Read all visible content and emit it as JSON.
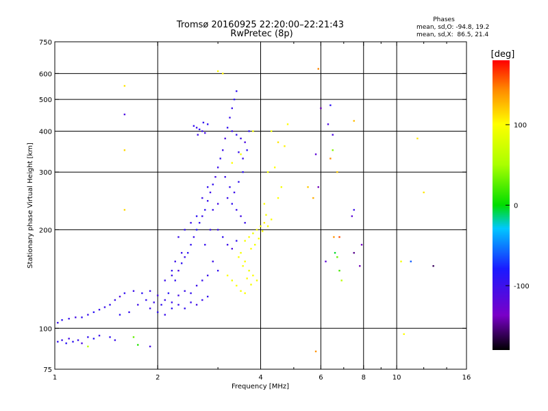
{
  "chart_data": {
    "type": "scatter",
    "title": "Tromsø 20160925 22:20:00–22:21:43",
    "subtitle": "RwPretec (8p)",
    "phases_box": {
      "header": "Phases",
      "line1": "mean, sd,O: -94.8, 19.2",
      "line2": "mean, sd,X:  86.5, 21.4"
    },
    "xlabel": "Frequency [MHz]",
    "ylabel": "Stationary phase Virtual Height [km]",
    "x_scale": "log",
    "y_scale": "log",
    "xlim": [
      1,
      16
    ],
    "ylim": [
      75,
      750
    ],
    "x_ticks": [
      1,
      2,
      4,
      6,
      8,
      10,
      16
    ],
    "x_tick_labels": [
      "1",
      "2",
      "4",
      "6",
      "8",
      "10",
      "16"
    ],
    "y_ticks": [
      75,
      100,
      200,
      300,
      400,
      500,
      600,
      750
    ],
    "y_tick_labels": [
      "75",
      "100",
      "200",
      "300",
      "400",
      "500",
      "600",
      "750"
    ],
    "x_gridlines": [
      2,
      4,
      6,
      8,
      10
    ],
    "y_gridlines": [
      100,
      200,
      300,
      400,
      500,
      600
    ],
    "grid": true,
    "colorbar": {
      "label": "[deg]",
      "range": [
        -180,
        180
      ],
      "ticks": [
        100,
        0,
        -100
      ],
      "tick_labels": [
        "100",
        "0",
        "-100"
      ]
    },
    "series": [
      {
        "mode": "O",
        "points": [
          [
            1.02,
            91,
            -95
          ],
          [
            1.05,
            92,
            -100
          ],
          [
            1.08,
            90,
            -90
          ],
          [
            1.1,
            93,
            -105
          ],
          [
            1.13,
            91,
            -92
          ],
          [
            1.17,
            92,
            -98
          ],
          [
            1.2,
            90,
            -110
          ],
          [
            1.25,
            94,
            -95
          ],
          [
            1.3,
            93,
            -88
          ],
          [
            1.35,
            95,
            -100
          ],
          [
            1.45,
            94,
            -95
          ],
          [
            1.5,
            92,
            -100
          ],
          [
            1.02,
            104,
            -100
          ],
          [
            1.05,
            106,
            -92
          ],
          [
            1.1,
            107,
            -98
          ],
          [
            1.15,
            108,
            -105
          ],
          [
            1.2,
            108,
            -95
          ],
          [
            1.25,
            110,
            -100
          ],
          [
            1.3,
            112,
            -90
          ],
          [
            1.35,
            114,
            -97
          ],
          [
            1.4,
            116,
            -100
          ],
          [
            1.45,
            118,
            -95
          ],
          [
            1.5,
            122,
            -100
          ],
          [
            1.55,
            125,
            -110
          ],
          [
            1.6,
            128,
            -95
          ],
          [
            1.7,
            130,
            -100
          ],
          [
            1.8,
            128,
            -90
          ],
          [
            1.9,
            130,
            -100
          ],
          [
            2.0,
            126,
            -105
          ],
          [
            2.05,
            118,
            -95
          ],
          [
            2.1,
            122,
            -100
          ],
          [
            2.15,
            128,
            -88
          ],
          [
            1.55,
            110,
            -92
          ],
          [
            1.65,
            112,
            -98
          ],
          [
            1.75,
            118,
            -102
          ],
          [
            1.85,
            122,
            -96
          ],
          [
            1.95,
            120,
            -100
          ],
          [
            2.2,
            145,
            -100
          ],
          [
            2.25,
            140,
            -95
          ],
          [
            2.3,
            150,
            -110
          ],
          [
            2.35,
            158,
            -92
          ],
          [
            2.4,
            165,
            -100
          ],
          [
            2.45,
            170,
            -90
          ],
          [
            2.5,
            180,
            -95
          ],
          [
            2.55,
            190,
            -100
          ],
          [
            2.6,
            200,
            -85
          ],
          [
            2.65,
            210,
            -95
          ],
          [
            2.7,
            220,
            -100
          ],
          [
            2.75,
            230,
            -92
          ],
          [
            2.8,
            245,
            -98
          ],
          [
            2.85,
            260,
            -100
          ],
          [
            2.9,
            275,
            -95
          ],
          [
            2.95,
            290,
            -105
          ],
          [
            3.0,
            310,
            -100
          ],
          [
            3.05,
            330,
            -95
          ],
          [
            3.1,
            350,
            -100
          ],
          [
            3.15,
            380,
            -110
          ],
          [
            3.2,
            410,
            -95
          ],
          [
            3.25,
            440,
            -100
          ],
          [
            3.3,
            470,
            -98
          ],
          [
            3.35,
            500,
            -92
          ],
          [
            3.4,
            530,
            -95
          ],
          [
            2.6,
            410,
            -100
          ],
          [
            2.65,
            405,
            -95
          ],
          [
            2.7,
            400,
            -100
          ],
          [
            2.75,
            395,
            -105
          ],
          [
            2.8,
            420,
            -90
          ],
          [
            2.55,
            415,
            -96
          ],
          [
            2.62,
            390,
            -102
          ],
          [
            2.72,
            425,
            -94
          ],
          [
            3.3,
            400,
            -100
          ],
          [
            3.4,
            390,
            -95
          ],
          [
            3.5,
            380,
            -100
          ],
          [
            3.6,
            370,
            -110
          ],
          [
            3.7,
            400,
            -95
          ],
          [
            3.45,
            345,
            -98
          ],
          [
            3.55,
            330,
            -100
          ],
          [
            3.65,
            350,
            -92
          ],
          [
            3.2,
            250,
            -100
          ],
          [
            3.3,
            240,
            -95
          ],
          [
            3.4,
            230,
            -100
          ],
          [
            3.5,
            220,
            -105
          ],
          [
            3.6,
            210,
            -100
          ],
          [
            3.25,
            270,
            -98
          ],
          [
            3.35,
            260,
            -100
          ],
          [
            3.45,
            280,
            -95
          ],
          [
            3.15,
            290,
            -100
          ],
          [
            3.55,
            300,
            -92
          ],
          [
            3.0,
            200,
            -100
          ],
          [
            3.1,
            190,
            -95
          ],
          [
            3.2,
            180,
            -100
          ],
          [
            3.3,
            175,
            -110
          ],
          [
            3.4,
            185,
            -95
          ],
          [
            2.9,
            160,
            -100
          ],
          [
            3.0,
            150,
            -95
          ],
          [
            2.8,
            145,
            -100
          ],
          [
            2.7,
            140,
            -98
          ],
          [
            2.6,
            135,
            -100
          ],
          [
            2.5,
            128,
            -95
          ],
          [
            2.4,
            130,
            -100
          ],
          [
            2.3,
            126,
            -105
          ],
          [
            2.2,
            120,
            -100
          ],
          [
            2.3,
            190,
            -100
          ],
          [
            2.4,
            200,
            -95
          ],
          [
            2.5,
            210,
            -100
          ],
          [
            2.6,
            220,
            -92
          ],
          [
            2.7,
            250,
            -100
          ],
          [
            2.8,
            270,
            -95
          ],
          [
            2.9,
            230,
            -100
          ],
          [
            3.0,
            240,
            -105
          ],
          [
            2.75,
            180,
            -98
          ],
          [
            2.85,
            200,
            -100
          ],
          [
            2.1,
            140,
            -100
          ],
          [
            2.2,
            150,
            -95
          ],
          [
            2.25,
            160,
            -100
          ],
          [
            2.35,
            170,
            -98
          ],
          [
            1.9,
            115,
            -100
          ],
          [
            2.0,
            112,
            -95
          ],
          [
            2.1,
            110,
            -100
          ],
          [
            2.2,
            115,
            -92
          ],
          [
            2.3,
            118,
            -100
          ],
          [
            2.4,
            115,
            -95
          ],
          [
            2.5,
            120,
            -100
          ],
          [
            2.6,
            118,
            -105
          ],
          [
            2.7,
            122,
            -100
          ],
          [
            2.8,
            125,
            -95
          ]
        ]
      },
      {
        "mode": "X",
        "points": [
          [
            3.6,
            185,
            95
          ],
          [
            3.7,
            190,
            100
          ],
          [
            3.8,
            195,
            90
          ],
          [
            3.9,
            200,
            100
          ],
          [
            4.0,
            205,
            95
          ],
          [
            4.1,
            210,
            105
          ],
          [
            3.75,
            175,
            100
          ],
          [
            3.85,
            180,
            92
          ],
          [
            3.95,
            188,
            98
          ],
          [
            4.05,
            198,
            100
          ],
          [
            3.5,
            170,
            95
          ],
          [
            3.6,
            160,
            100
          ],
          [
            3.7,
            150,
            90
          ],
          [
            3.8,
            145,
            100
          ],
          [
            3.9,
            140,
            95
          ],
          [
            3.45,
            165,
            100
          ],
          [
            3.55,
            155,
            98
          ],
          [
            3.65,
            142,
            102
          ],
          [
            3.75,
            136,
            95
          ],
          [
            3.4,
            135,
            100
          ],
          [
            3.5,
            130,
            95
          ],
          [
            3.6,
            128,
            100
          ],
          [
            3.3,
            140,
            92
          ],
          [
            3.2,
            145,
            100
          ],
          [
            4.2,
            205,
            95
          ],
          [
            4.3,
            215,
            100
          ],
          [
            4.15,
            222,
            96
          ],
          [
            4.5,
            250,
            100
          ],
          [
            4.6,
            270,
            95
          ],
          [
            4.4,
            310,
            100
          ],
          [
            4.5,
            370,
            110
          ],
          [
            4.3,
            400,
            95
          ],
          [
            4.8,
            420,
            100
          ],
          [
            4.2,
            300,
            95
          ],
          [
            4.1,
            240,
            100
          ],
          [
            4.7,
            360,
            105
          ],
          [
            3.0,
            610,
            100
          ],
          [
            3.1,
            600,
            105
          ],
          [
            3.8,
            400,
            95
          ],
          [
            3.5,
            340,
            95
          ],
          [
            3.3,
            320,
            100
          ],
          [
            10.5,
            96,
            100
          ],
          [
            11.5,
            380,
            110
          ],
          [
            10.3,
            160,
            95
          ],
          [
            12.0,
            260,
            110
          ],
          [
            5.5,
            270,
            120
          ],
          [
            5.7,
            250,
            130
          ],
          [
            6.4,
            330,
            140
          ],
          [
            6.7,
            300,
            120
          ],
          [
            5.8,
            85,
            140
          ],
          [
            6.8,
            190,
            160
          ],
          [
            5.9,
            620,
            145
          ],
          [
            7.5,
            430,
            125
          ]
        ]
      },
      {
        "mode": "other",
        "points": [
          [
            1.6,
            550,
            110
          ],
          [
            1.6,
            350,
            115
          ],
          [
            1.6,
            230,
            115
          ],
          [
            1.6,
            450,
            -110
          ],
          [
            1.7,
            94,
            30
          ],
          [
            1.25,
            88,
            60
          ],
          [
            1.75,
            89,
            10
          ],
          [
            1.9,
            88,
            -105
          ],
          [
            6.4,
            480,
            -90
          ],
          [
            6.5,
            390,
            -110
          ],
          [
            6.5,
            350,
            40
          ],
          [
            6.6,
            170,
            -5
          ],
          [
            6.7,
            165,
            30
          ],
          [
            6.8,
            150,
            20
          ],
          [
            7.4,
            220,
            -120
          ],
          [
            7.8,
            155,
            -140
          ],
          [
            7.5,
            170,
            -150
          ],
          [
            7.9,
            180,
            -135
          ],
          [
            7.5,
            230,
            -100
          ],
          [
            11.0,
            160,
            -60
          ],
          [
            12.8,
            155,
            -160
          ],
          [
            6.2,
            160,
            -120
          ],
          [
            5.9,
            270,
            -140
          ],
          [
            5.8,
            340,
            -120
          ],
          [
            6.0,
            470,
            -140
          ],
          [
            6.3,
            420,
            -110
          ],
          [
            6.9,
            140,
            60
          ],
          [
            6.55,
            190,
            140
          ]
        ]
      }
    ]
  }
}
